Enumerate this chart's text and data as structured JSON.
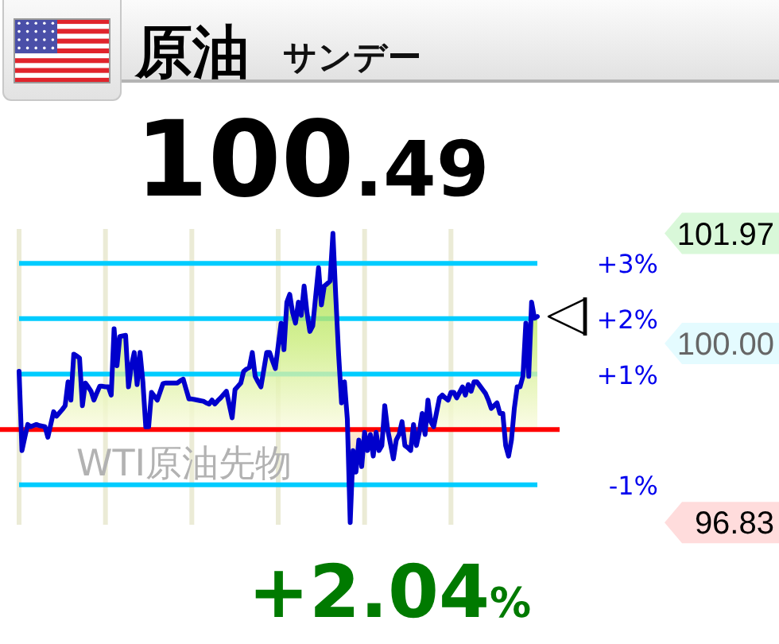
{
  "chart_data": {
    "type": "area",
    "title": "原油",
    "subtitle": "サンデー",
    "categories": [
      null,
      null,
      null,
      null,
      null,
      null,
      null,
      null,
      null,
      null,
      null,
      null,
      null,
      null,
      null,
      null,
      null,
      null,
      null,
      null,
      null,
      null,
      null,
      null,
      null,
      null,
      null,
      null,
      null,
      null,
      null,
      null,
      null,
      null,
      null,
      null,
      null,
      null,
      null,
      null,
      null,
      null,
      null,
      null,
      null,
      null,
      null,
      null,
      null,
      null,
      null,
      null,
      null,
      null,
      null,
      null,
      null,
      null,
      null,
      null,
      null,
      null,
      null,
      null,
      null,
      null,
      null,
      null,
      null,
      null,
      null,
      null,
      null,
      null,
      null,
      null,
      null,
      null,
      null,
      null,
      null,
      null,
      null,
      null,
      null,
      null,
      null,
      null,
      null,
      null,
      null,
      null,
      null,
      null,
      null,
      null,
      null,
      null,
      null,
      null,
      null,
      null,
      null,
      null,
      null,
      null,
      null,
      null,
      null,
      null,
      null,
      null,
      null,
      null,
      null,
      null,
      null,
      null,
      null,
      null,
      null,
      null,
      null,
      null,
      null,
      null,
      null,
      null,
      null,
      null,
      null,
      null,
      null,
      null,
      null,
      null,
      null,
      null,
      null,
      null,
      null,
      null,
      null,
      null,
      null,
      null,
      null,
      null,
      null,
      null,
      null,
      null,
      null,
      null,
      null,
      null,
      null,
      null,
      null,
      null,
      null,
      null,
      null,
      null,
      null,
      null,
      null,
      null,
      null,
      null,
      null,
      null,
      null,
      null,
      null,
      null,
      null,
      null,
      null,
      null,
      null
    ],
    "color": "#0000cc",
    "values": [
      1.05,
      -0.38,
      -0.14,
      0.09,
      0.05,
      0.07,
      0.09,
      0.07,
      0.06,
      0.05,
      -0.14,
      0.09,
      0.32,
      0.24,
      0.3,
      0.36,
      0.43,
      0.86,
      0.53,
      1.36,
      1.33,
      1.29,
      0.43,
      0.84,
      0.77,
      0.69,
      0.53,
      0.66,
      0.78,
      0.78,
      0.77,
      0.77,
      0.62,
      1.82,
      1.15,
      1.68,
      1.69,
      1.7,
      0.77,
      1.15,
      1.39,
      0.81,
      1.39,
      0.86,
      0.05,
      0.05,
      0.67,
      0.6,
      0.53,
      0.68,
      0.83,
      0.84,
      0.84,
      0.84,
      0.84,
      0.84,
      0.88,
      0.91,
      0.73,
      0.55,
      0.55,
      0.54,
      0.53,
      0.52,
      0.51,
      0.48,
      0.46,
      0.53,
      0.46,
      0.52,
      0.57,
      0.63,
      0.69,
      0.45,
      0.21,
      0.72,
      0.78,
      0.84,
      1.05,
      1.09,
      1.12,
      1.39,
      0.96,
      0.86,
      0.77,
      1.08,
      1.39,
      1.39,
      1.24,
      1.1,
      1.51,
      1.92,
      1.44,
      2.3,
      2.44,
      2.11,
      1.92,
      2.3,
      2.06,
      2.59,
      2.11,
      1.77,
      1.87,
      2.4,
      2.92,
      2.25,
      2.59,
      2.63,
      2.68,
      3.54,
      2.39,
      1.34,
      0.48,
      0.86,
      0.19,
      -1.68,
      -0.38,
      -0.77,
      -0.19,
      -0.67,
      -0.05,
      -0.38,
      -0.09,
      -0.48,
      -0.05,
      -0.38,
      -0.29,
      0.43,
      0,
      -0.26,
      -0.53,
      -0.19,
      -0.09,
      0.14,
      -0.29,
      -0.33,
      -0.38,
      0.09,
      -0.29,
      -0.05,
      0.29,
      -0.09,
      0.53,
      0.14,
      0.05,
      0.31,
      0.57,
      0.62,
      0.57,
      0.53,
      0.67,
      0.67,
      0.57,
      0.67,
      0.77,
      0.62,
      0.81,
      0.69,
      0.86,
      0.86,
      0.79,
      0.72,
      0.65,
      0.53,
      0.38,
      0.43,
      0.48,
      0.29,
      0.29,
      -0.29,
      -0.48,
      -0.19,
      0.38,
      0.77,
      0.77,
      0.96,
      1.92,
      0.96,
      2.3,
      2.01,
      2.04
    ],
    "ylim": [
      -1.72,
      3.62
    ],
    "yticks": [
      {
        "value": 3,
        "label": "+3%"
      },
      {
        "value": 2,
        "label": "+2%"
      },
      {
        "value": 1,
        "label": "+1%"
      },
      {
        "value": -1,
        "label": "-1%"
      }
    ],
    "tick_labels": "y",
    "grid": true,
    "ref_lines": [
      {
        "axis": "y",
        "value": 0,
        "color": "#ff0000"
      }
    ],
    "annotations": [
      "100.49",
      "+2.04%",
      "WTI原油先物",
      "101.97",
      "100.00",
      "96.83"
    ]
  }
}
